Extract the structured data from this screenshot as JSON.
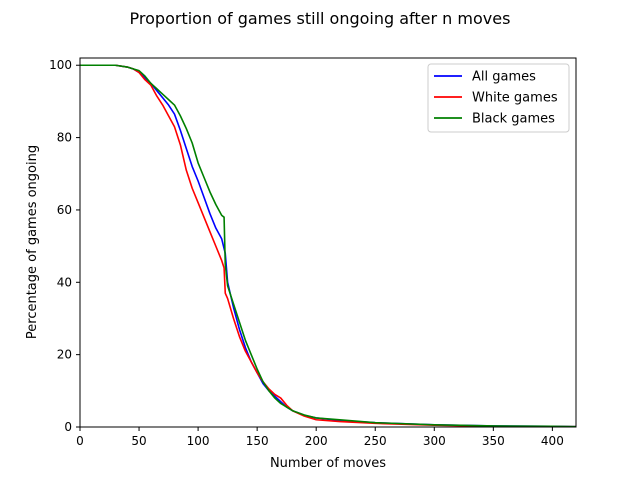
{
  "chart_data": {
    "type": "line",
    "title": "Proportion of games still ongoing after n moves",
    "xlabel": "Number of moves",
    "ylabel": "Percentage of games ongoing",
    "xlim": [
      0,
      420
    ],
    "ylim": [
      0,
      102
    ],
    "xticks": [
      0,
      50,
      100,
      150,
      200,
      250,
      300,
      350,
      400
    ],
    "yticks": [
      0,
      20,
      40,
      60,
      80,
      100
    ],
    "grid": false,
    "legend": "top-right",
    "series": [
      {
        "name": "All games",
        "color": "#0000ff",
        "x": [
          0,
          20,
          30,
          40,
          45,
          50,
          55,
          60,
          65,
          70,
          75,
          80,
          85,
          90,
          95,
          100,
          105,
          110,
          115,
          120,
          123,
          125,
          130,
          135,
          140,
          145,
          150,
          155,
          160,
          165,
          170,
          175,
          180,
          190,
          200,
          220,
          250,
          300,
          350,
          400,
          420
        ],
        "y": [
          100,
          100,
          100,
          99.5,
          99,
          98,
          96.5,
          95,
          93,
          91,
          89,
          86.5,
          82,
          77,
          72,
          68,
          63.5,
          59,
          55,
          52,
          48,
          40,
          33,
          27,
          22,
          18,
          15,
          12,
          10,
          8.5,
          7,
          5.5,
          4.5,
          3.2,
          2.5,
          1.8,
          1.2,
          0.6,
          0.3,
          0.2,
          0.1
        ]
      },
      {
        "name": "White games",
        "color": "#ff0000",
        "x": [
          0,
          20,
          30,
          40,
          45,
          50,
          55,
          60,
          65,
          70,
          75,
          80,
          85,
          90,
          95,
          100,
          105,
          110,
          115,
          120,
          122,
          123,
          125,
          130,
          135,
          140,
          145,
          150,
          155,
          160,
          165,
          170,
          175,
          180,
          190,
          200,
          220,
          250,
          300,
          350,
          400,
          420
        ],
        "y": [
          100,
          100,
          100,
          99.5,
          99,
          98,
          96,
          94.5,
          91.5,
          89,
          86,
          83,
          78,
          71,
          66,
          62,
          58,
          54,
          50,
          46,
          44,
          37,
          35.5,
          30,
          25,
          21,
          18,
          15,
          12.5,
          10.5,
          9,
          8,
          6,
          4.5,
          3,
          2,
          1.5,
          1,
          0.5,
          0.2,
          0.1,
          0.1
        ]
      },
      {
        "name": "Black games",
        "color": "#008000",
        "x": [
          0,
          20,
          30,
          40,
          45,
          50,
          55,
          60,
          65,
          70,
          75,
          80,
          85,
          90,
          95,
          100,
          105,
          110,
          115,
          120,
          122,
          123,
          125,
          130,
          135,
          140,
          145,
          150,
          155,
          160,
          165,
          170,
          175,
          180,
          190,
          200,
          220,
          250,
          300,
          350,
          400,
          420
        ],
        "y": [
          100,
          100,
          100,
          99.5,
          99,
          98.5,
          97,
          95,
          93.5,
          92,
          90.5,
          89,
          86,
          82.5,
          78.5,
          73,
          69,
          65,
          61.5,
          58.5,
          58,
          45,
          39,
          34,
          29,
          24,
          20,
          16,
          12.5,
          10,
          8,
          6.5,
          5.5,
          4.5,
          3.3,
          2.5,
          2,
          1.2,
          0.6,
          0.3,
          0.2,
          0.1
        ]
      }
    ]
  }
}
